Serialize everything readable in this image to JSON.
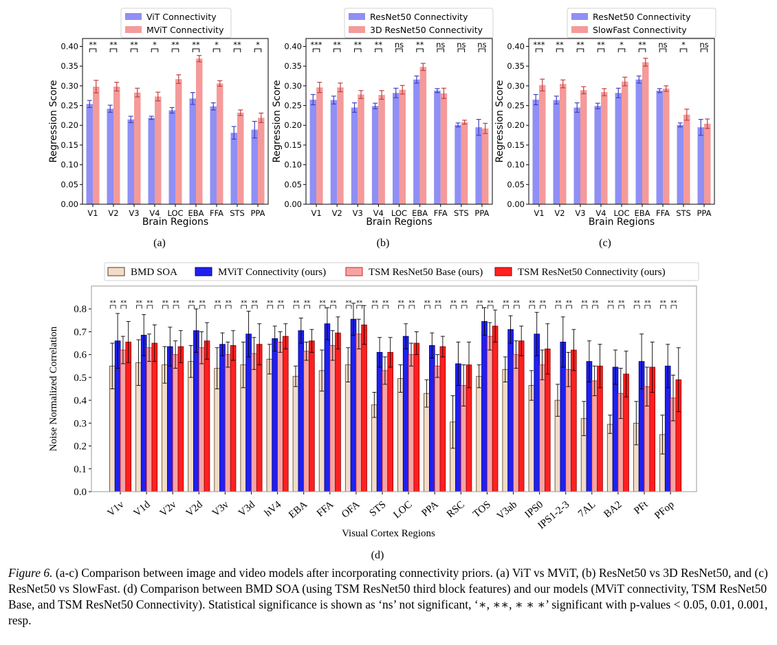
{
  "chart_data": [
    {
      "type": "bar",
      "panel_label": "(a)",
      "categories": [
        "V1",
        "V2",
        "V3",
        "V4",
        "LOC",
        "EBA",
        "FFA",
        "STS",
        "PPA"
      ],
      "series": [
        {
          "name": "ViT Connectivity",
          "color": "#8f8ff5",
          "values": [
            0.254,
            0.242,
            0.215,
            0.219,
            0.238,
            0.268,
            0.248,
            0.181,
            0.189
          ],
          "errors": [
            0.009,
            0.009,
            0.008,
            0.004,
            0.007,
            0.015,
            0.009,
            0.016,
            0.021
          ]
        },
        {
          "name": "MViT Connectivity",
          "color": "#f59a9a",
          "values": [
            0.298,
            0.298,
            0.283,
            0.273,
            0.317,
            0.369,
            0.306,
            0.232,
            0.219
          ],
          "errors": [
            0.016,
            0.011,
            0.011,
            0.011,
            0.011,
            0.008,
            0.007,
            0.007,
            0.012
          ]
        }
      ],
      "significance": [
        "**",
        "**",
        "**",
        "*",
        "**",
        "**",
        "*",
        "**",
        "*"
      ],
      "xlabel": "Brain Regions",
      "ylabel": "Regression Score",
      "ylim": [
        0,
        0.42
      ],
      "yticks": [
        "0.00",
        "0.05",
        "0.10",
        "0.15",
        "0.20",
        "0.25",
        "0.30",
        "0.35",
        "0.40"
      ],
      "legend": "top-center",
      "grid": false
    },
    {
      "type": "bar",
      "panel_label": "(b)",
      "categories": [
        "V1",
        "V2",
        "V3",
        "V4",
        "LOC",
        "EBA",
        "FFA",
        "STS",
        "PPA"
      ],
      "series": [
        {
          "name": "ResNet50 Connectivity",
          "color": "#8f8ff5",
          "values": [
            0.265,
            0.264,
            0.245,
            0.249,
            0.282,
            0.316,
            0.288,
            0.201,
            0.195
          ],
          "errors": [
            0.013,
            0.01,
            0.012,
            0.007,
            0.012,
            0.009,
            0.005,
            0.005,
            0.02
          ]
        },
        {
          "name": "3D ResNet50 Connectivity",
          "color": "#f59a9a",
          "values": [
            0.296,
            0.296,
            0.278,
            0.277,
            0.29,
            0.348,
            0.281,
            0.208,
            0.192
          ],
          "errors": [
            0.013,
            0.011,
            0.01,
            0.011,
            0.011,
            0.009,
            0.013,
            0.005,
            0.013
          ]
        }
      ],
      "significance": [
        "***",
        "**",
        "**",
        "**",
        "ns",
        "**",
        "ns",
        "ns",
        "ns"
      ],
      "xlabel": "Brain Regions",
      "ylabel": "Regression Score",
      "ylim": [
        0,
        0.42
      ],
      "yticks": [
        "0.00",
        "0.05",
        "0.10",
        "0.15",
        "0.20",
        "0.25",
        "0.30",
        "0.35",
        "0.40"
      ],
      "legend": "top-center",
      "grid": false
    },
    {
      "type": "bar",
      "panel_label": "(c)",
      "categories": [
        "V1",
        "V2",
        "V3",
        "V4",
        "LOC",
        "EBA",
        "FFA",
        "STS",
        "PPA"
      ],
      "series": [
        {
          "name": "ResNet50 Connectivity",
          "color": "#8f8ff5",
          "values": [
            0.265,
            0.264,
            0.245,
            0.249,
            0.282,
            0.316,
            0.288,
            0.201,
            0.195
          ],
          "errors": [
            0.013,
            0.01,
            0.012,
            0.007,
            0.012,
            0.009,
            0.005,
            0.005,
            0.02
          ]
        },
        {
          "name": "SlowFast Connectivity",
          "color": "#f59a9a",
          "values": [
            0.302,
            0.305,
            0.289,
            0.284,
            0.311,
            0.36,
            0.293,
            0.227,
            0.204
          ],
          "errors": [
            0.015,
            0.01,
            0.009,
            0.009,
            0.011,
            0.01,
            0.007,
            0.014,
            0.012
          ]
        }
      ],
      "significance": [
        "***",
        "**",
        "**",
        "**",
        "*",
        "**",
        "ns",
        "*",
        "ns"
      ],
      "xlabel": "Brain Regions",
      "ylabel": "Regression Score",
      "ylim": [
        0,
        0.42
      ],
      "yticks": [
        "0.00",
        "0.05",
        "0.10",
        "0.15",
        "0.20",
        "0.25",
        "0.30",
        "0.35",
        "0.40"
      ],
      "legend": "top-center",
      "grid": false
    },
    {
      "type": "bar",
      "panel_label": "(d)",
      "categories": [
        "V1v",
        "V1d",
        "V2v",
        "V2d",
        "V3v",
        "V3d",
        "hV4",
        "EBA",
        "FFA",
        "OFA",
        "STS",
        "LOC",
        "PPA",
        "RSC",
        "TOS",
        "V3ab",
        "IPS0",
        "IPS1-2-3",
        "7AL",
        "BA2",
        "PFt",
        "PFop"
      ],
      "series": [
        {
          "name": "BMD SOA",
          "color": "#f1dcc8",
          "edge": "#5a3a1a",
          "values": [
            0.55,
            0.565,
            0.555,
            0.57,
            0.54,
            0.555,
            0.58,
            0.505,
            0.53,
            0.555,
            0.38,
            0.495,
            0.43,
            0.305,
            0.505,
            0.535,
            0.465,
            0.4,
            0.32,
            0.295,
            0.3,
            0.25
          ],
          "errors": [
            0.1,
            0.1,
            0.08,
            0.07,
            0.09,
            0.1,
            0.065,
            0.045,
            0.09,
            0.075,
            0.055,
            0.06,
            0.06,
            0.115,
            0.05,
            0.055,
            0.065,
            0.07,
            0.075,
            0.04,
            0.095,
            0.085
          ]
        },
        {
          "name": "MViT Connectivity (ours)",
          "color": "#2020ee",
          "edge": "#000080",
          "values": [
            0.66,
            0.685,
            0.635,
            0.705,
            0.645,
            0.69,
            0.67,
            0.705,
            0.735,
            0.755,
            0.61,
            0.68,
            0.64,
            0.56,
            0.745,
            0.71,
            0.69,
            0.655,
            0.57,
            0.545,
            0.57,
            0.55
          ],
          "errors": [
            0.12,
            0.09,
            0.085,
            0.095,
            0.05,
            0.1,
            0.055,
            0.055,
            0.07,
            0.07,
            0.065,
            0.055,
            0.055,
            0.095,
            0.06,
            0.06,
            0.095,
            0.11,
            0.09,
            0.075,
            0.12,
            0.095
          ]
        },
        {
          "name": "TSM ResNet50 Base (ours)",
          "color": "#f7a3a3",
          "edge": "#d02020",
          "values": [
            0.62,
            0.63,
            0.6,
            0.63,
            0.6,
            0.605,
            0.655,
            0.615,
            0.64,
            0.69,
            0.53,
            0.6,
            0.55,
            0.465,
            0.68,
            0.6,
            0.555,
            0.535,
            0.485,
            0.43,
            0.46,
            0.41
          ],
          "errors": [
            0.06,
            0.06,
            0.06,
            0.07,
            0.055,
            0.07,
            0.045,
            0.04,
            0.065,
            0.065,
            0.06,
            0.05,
            0.05,
            0.09,
            0.06,
            0.06,
            0.065,
            0.075,
            0.065,
            0.11,
            0.085,
            0.1
          ]
        },
        {
          "name": "TSM ResNet50 Connectivity (ours)",
          "color": "#ff2020",
          "edge": "#900000",
          "values": [
            0.655,
            0.65,
            0.635,
            0.66,
            0.64,
            0.645,
            0.68,
            0.66,
            0.695,
            0.73,
            0.61,
            0.65,
            0.635,
            0.555,
            0.725,
            0.66,
            0.625,
            0.62,
            0.55,
            0.515,
            0.545,
            0.49
          ],
          "errors": [
            0.09,
            0.08,
            0.07,
            0.08,
            0.065,
            0.09,
            0.055,
            0.05,
            0.07,
            0.085,
            0.065,
            0.05,
            0.045,
            0.1,
            0.07,
            0.065,
            0.11,
            0.09,
            0.095,
            0.1,
            0.11,
            0.14
          ]
        }
      ],
      "xlabel": "Visual Cortex Regions",
      "ylabel": "Noise Normalized Correlation",
      "ylim": [
        0,
        0.9
      ],
      "yticks": [
        "0.0",
        "0.1",
        "0.2",
        "0.3",
        "0.4",
        "0.5",
        "0.6",
        "0.7",
        "0.8"
      ],
      "significance_marks": "**",
      "legend": "top-center",
      "grid": false
    }
  ],
  "caption": {
    "figure_label": "Figure 6.",
    "text": "(a-c) Comparison between image and video models after incorporating connectivity priors. (a) ViT vs MViT, (b) ResNet50 vs 3D ResNet50, and (c) ResNet50 vs SlowFast. (d) Comparison between BMD SOA (using TSM ResNet50 third block features) and our models (MViT connectivity, TSM ResNet50 Base, and TSM ResNet50 Connectivity). Statistical significance is shown as ‘ns’ not significant, ‘∗, ∗∗, ∗ ∗ ∗’ significant with p-values < 0.05, 0.01, 0.001, resp."
  }
}
